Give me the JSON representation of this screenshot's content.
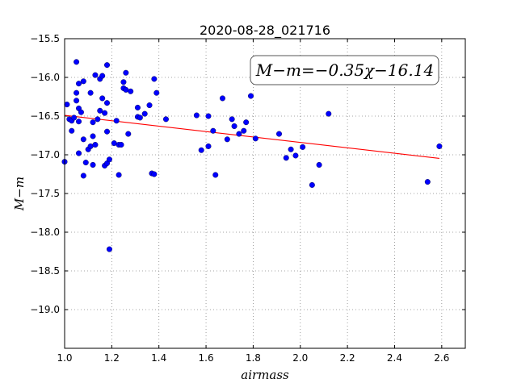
{
  "chart_data": {
    "type": "scatter",
    "title": "2020-08-28_021716",
    "xlabel": "airmass",
    "ylabel": "M−m",
    "annotation": "M−m=−0.35χ−16.14",
    "xlim": [
      1.0,
      2.7
    ],
    "ylim": [
      -15.5,
      -19.5
    ],
    "y_inverted": true,
    "grid": true,
    "x_ticks": [
      "1.0",
      "1.2",
      "1.4",
      "1.6",
      "1.8",
      "2.0",
      "2.2",
      "2.4",
      "2.6"
    ],
    "x_tick_values": [
      1.0,
      1.2,
      1.4,
      1.6,
      1.8,
      2.0,
      2.2,
      2.4,
      2.6
    ],
    "y_ticks": [
      "−15.5",
      "−16.0",
      "−16.5",
      "−17.0",
      "−17.5",
      "−18.0",
      "−18.5",
      "−19.0"
    ],
    "y_tick_values": [
      -15.5,
      -16.0,
      -16.5,
      -17.0,
      -17.5,
      -18.0,
      -18.5,
      -19.0
    ],
    "point_color": "#0000ff",
    "fit_color": "#ff0000",
    "fit": {
      "slope": -0.35,
      "intercept": -16.14,
      "x_range": [
        1.0,
        2.59
      ]
    },
    "points": [
      {
        "x": 1.0,
        "y": -17.09
      },
      {
        "x": 1.01,
        "y": -16.35
      },
      {
        "x": 1.02,
        "y": -16.54
      },
      {
        "x": 1.03,
        "y": -16.56
      },
      {
        "x": 1.03,
        "y": -16.69
      },
      {
        "x": 1.04,
        "y": -16.52
      },
      {
        "x": 1.05,
        "y": -15.8
      },
      {
        "x": 1.05,
        "y": -16.2
      },
      {
        "x": 1.05,
        "y": -16.3
      },
      {
        "x": 1.06,
        "y": -16.08
      },
      {
        "x": 1.06,
        "y": -16.4
      },
      {
        "x": 1.06,
        "y": -16.57
      },
      {
        "x": 1.06,
        "y": -16.98
      },
      {
        "x": 1.07,
        "y": -16.45
      },
      {
        "x": 1.08,
        "y": -16.05
      },
      {
        "x": 1.08,
        "y": -16.8
      },
      {
        "x": 1.08,
        "y": -17.27
      },
      {
        "x": 1.09,
        "y": -17.1
      },
      {
        "x": 1.1,
        "y": -16.93
      },
      {
        "x": 1.11,
        "y": -16.89
      },
      {
        "x": 1.11,
        "y": -16.2
      },
      {
        "x": 1.12,
        "y": -16.58
      },
      {
        "x": 1.12,
        "y": -16.76
      },
      {
        "x": 1.12,
        "y": -17.13
      },
      {
        "x": 1.13,
        "y": -16.87
      },
      {
        "x": 1.13,
        "y": -15.97
      },
      {
        "x": 1.14,
        "y": -16.54
      },
      {
        "x": 1.15,
        "y": -16.02
      },
      {
        "x": 1.15,
        "y": -16.43
      },
      {
        "x": 1.16,
        "y": -16.27
      },
      {
        "x": 1.16,
        "y": -15.98
      },
      {
        "x": 1.17,
        "y": -16.46
      },
      {
        "x": 1.17,
        "y": -17.14
      },
      {
        "x": 1.18,
        "y": -16.33
      },
      {
        "x": 1.18,
        "y": -15.84
      },
      {
        "x": 1.18,
        "y": -16.7
      },
      {
        "x": 1.18,
        "y": -17.11
      },
      {
        "x": 1.19,
        "y": -17.06
      },
      {
        "x": 1.19,
        "y": -18.22
      },
      {
        "x": 1.21,
        "y": -16.85
      },
      {
        "x": 1.22,
        "y": -16.56
      },
      {
        "x": 1.23,
        "y": -16.87
      },
      {
        "x": 1.23,
        "y": -17.26
      },
      {
        "x": 1.24,
        "y": -16.87
      },
      {
        "x": 1.25,
        "y": -16.06
      },
      {
        "x": 1.25,
        "y": -16.14
      },
      {
        "x": 1.26,
        "y": -15.94
      },
      {
        "x": 1.26,
        "y": -16.16
      },
      {
        "x": 1.27,
        "y": -16.73
      },
      {
        "x": 1.28,
        "y": -16.18
      },
      {
        "x": 1.31,
        "y": -16.39
      },
      {
        "x": 1.31,
        "y": -16.51
      },
      {
        "x": 1.32,
        "y": -16.52
      },
      {
        "x": 1.34,
        "y": -16.47
      },
      {
        "x": 1.36,
        "y": -16.36
      },
      {
        "x": 1.37,
        "y": -17.24
      },
      {
        "x": 1.38,
        "y": -16.02
      },
      {
        "x": 1.38,
        "y": -17.25
      },
      {
        "x": 1.39,
        "y": -16.2
      },
      {
        "x": 1.43,
        "y": -16.54
      },
      {
        "x": 1.56,
        "y": -16.49
      },
      {
        "x": 1.58,
        "y": -16.94
      },
      {
        "x": 1.61,
        "y": -16.5
      },
      {
        "x": 1.61,
        "y": -16.89
      },
      {
        "x": 1.63,
        "y": -16.69
      },
      {
        "x": 1.64,
        "y": -17.26
      },
      {
        "x": 1.67,
        "y": -16.27
      },
      {
        "x": 1.69,
        "y": -16.8
      },
      {
        "x": 1.71,
        "y": -16.54
      },
      {
        "x": 1.72,
        "y": -16.63
      },
      {
        "x": 1.74,
        "y": -16.73
      },
      {
        "x": 1.76,
        "y": -16.69
      },
      {
        "x": 1.77,
        "y": -16.58
      },
      {
        "x": 1.79,
        "y": -16.24
      },
      {
        "x": 1.81,
        "y": -16.79
      },
      {
        "x": 1.91,
        "y": -16.73
      },
      {
        "x": 1.94,
        "y": -17.04
      },
      {
        "x": 1.96,
        "y": -16.93
      },
      {
        "x": 1.98,
        "y": -17.01
      },
      {
        "x": 2.01,
        "y": -16.9
      },
      {
        "x": 2.05,
        "y": -17.39
      },
      {
        "x": 2.08,
        "y": -17.13
      },
      {
        "x": 2.12,
        "y": -16.47
      },
      {
        "x": 2.54,
        "y": -17.35
      },
      {
        "x": 2.59,
        "y": -16.89
      }
    ]
  }
}
